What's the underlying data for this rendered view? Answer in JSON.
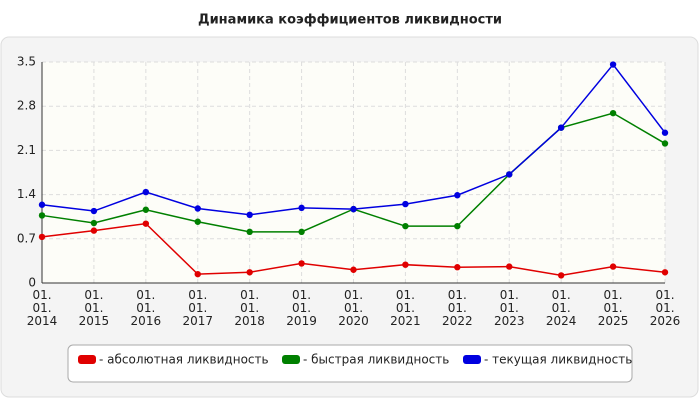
{
  "chart_data": {
    "type": "line",
    "title": "Динамика коэффициентов ликвидности",
    "categories": [
      "01. 01. 2014",
      "01. 01. 2015",
      "01. 01. 2016",
      "01. 01. 2017",
      "01. 01. 2018",
      "01. 01. 2019",
      "01. 01. 2020",
      "01. 01. 2021",
      "01. 01. 2022",
      "01. 01. 2023",
      "01. 01. 2024",
      "01. 01. 2025",
      "01. 01. 2026"
    ],
    "series": [
      {
        "name": "- абсолютная ликвидность",
        "color": "#e00000",
        "values": [
          0.73,
          0.83,
          0.94,
          0.14,
          0.17,
          0.31,
          0.21,
          0.29,
          0.25,
          0.26,
          0.12,
          0.26,
          0.17
        ]
      },
      {
        "name": "- быстрая ликвидность",
        "color": "#008000",
        "values": [
          1.07,
          0.95,
          1.16,
          0.97,
          0.81,
          0.81,
          1.17,
          0.9,
          0.9,
          1.72,
          2.46,
          2.69,
          2.21
        ]
      },
      {
        "name": "- текущая ликвидность",
        "color": "#0000e0",
        "values": [
          1.24,
          1.14,
          1.44,
          1.18,
          1.08,
          1.19,
          1.17,
          1.25,
          1.39,
          1.72,
          2.46,
          3.46,
          2.38
        ]
      }
    ],
    "ylim": [
      0,
      3.5
    ],
    "yticks": [
      0,
      0.7,
      1.4,
      2.1,
      2.8,
      3.5
    ],
    "grid": true,
    "legend": "bottom"
  }
}
